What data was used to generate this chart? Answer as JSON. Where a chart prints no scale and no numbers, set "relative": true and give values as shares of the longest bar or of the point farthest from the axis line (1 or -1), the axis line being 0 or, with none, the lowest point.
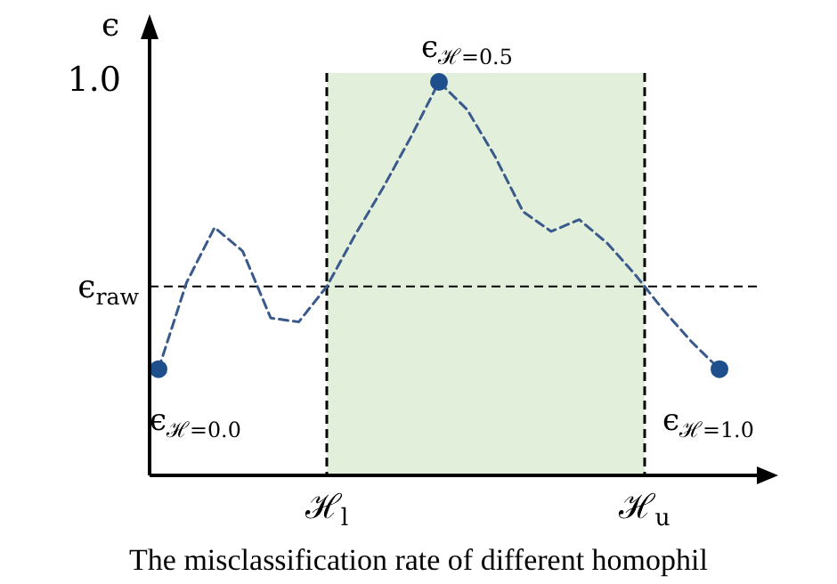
{
  "chart_data": {
    "type": "line",
    "relative": true,
    "ylabel": "ϵ",
    "categories": [
      null,
      null,
      null,
      null,
      null,
      null,
      null,
      null,
      null,
      null,
      null,
      null,
      null,
      null,
      null,
      null,
      null,
      null,
      null,
      null,
      null
    ],
    "series": [
      {
        "color": "#3a5a8c",
        "line_style": "dashed",
        "values": [
          0.27,
          0.49,
          0.63,
          0.57,
          0.4,
          0.39,
          0.48,
          0.61,
          0.73,
          0.86,
          1,
          0.93,
          0.81,
          0.67,
          0.62,
          0.65,
          0.59,
          0.51,
          0.42,
          0.34,
          0.27
        ]
      }
    ],
    "ref_lines": [
      {
        "axis": "y",
        "value": 0.48,
        "label": "ϵ$_{raw}$",
        "line_style": "dashed",
        "color": "#000000"
      }
    ],
    "annotations": [
      "1.0",
      "ϵ$_{ℋ=0.0}$",
      "ϵ$_{ℋ=0.5}$",
      "ϵ$_{ℋ=1.0}$",
      "ℋ$_{l}$",
      "ℋ$_{u}$",
      "The misclassification rate of different homophil"
    ]
  }
}
